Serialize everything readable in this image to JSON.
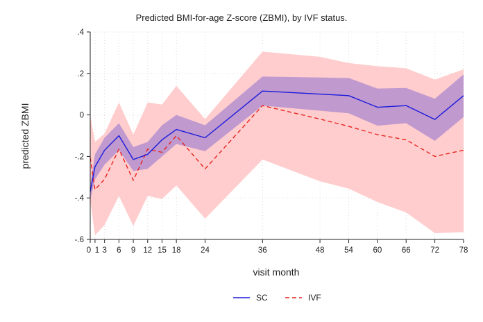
{
  "chart_data": {
    "type": "line",
    "title": "Predicted BMI-for-age Z-score (ZBMI), by IVF status.",
    "xlabel": "visit month",
    "ylabel": "predicted ZBMI",
    "x_ticks": [
      0,
      1,
      3,
      6,
      9,
      12,
      15,
      18,
      24,
      36,
      48,
      54,
      60,
      66,
      72,
      78
    ],
    "y_ticks": [
      -0.6,
      -0.4,
      -0.2,
      0,
      0.2,
      0.4
    ],
    "y_tick_labels": [
      "-.6",
      "-.4",
      "-.2",
      "0",
      ".2",
      ".4"
    ],
    "xlim": [
      0,
      78
    ],
    "ylim": [
      -0.6,
      0.4
    ],
    "grid": true,
    "legend_position": "bottom-center",
    "series": [
      {
        "name": "SC",
        "color": "#1a1adb",
        "band_color": "#b58fcf",
        "style": "solid",
        "x": [
          0,
          1,
          3,
          6,
          9,
          12,
          15,
          18,
          24,
          36,
          54,
          60,
          66,
          72,
          78
        ],
        "y": [
          -0.37,
          -0.25,
          -0.17,
          -0.1,
          -0.215,
          -0.19,
          -0.12,
          -0.07,
          -0.11,
          0.115,
          0.093,
          0.037,
          0.045,
          -0.022,
          0.093
        ],
        "lower": [
          -0.41,
          -0.31,
          -0.24,
          -0.17,
          -0.27,
          -0.26,
          -0.2,
          -0.14,
          -0.175,
          0.045,
          0.008,
          -0.052,
          -0.04,
          -0.125,
          -0.01
        ],
        "upper": [
          -0.34,
          -0.19,
          -0.11,
          -0.04,
          -0.155,
          -0.13,
          -0.05,
          0.0,
          -0.05,
          0.185,
          0.178,
          0.127,
          0.13,
          0.078,
          0.195
        ]
      },
      {
        "name": "IVF",
        "color": "#e8231f",
        "band_color": "#ffc8c8",
        "style": "dashed",
        "x": [
          0,
          1,
          3,
          6,
          9,
          12,
          15,
          18,
          24,
          36,
          48,
          54,
          60,
          66,
          72,
          78
        ],
        "y": [
          -0.205,
          -0.36,
          -0.31,
          -0.165,
          -0.315,
          -0.165,
          -0.18,
          -0.1,
          -0.26,
          0.045,
          -0.02,
          -0.055,
          -0.095,
          -0.12,
          -0.2,
          -0.17
        ],
        "lower": [
          -0.41,
          -0.58,
          -0.53,
          -0.39,
          -0.535,
          -0.39,
          -0.405,
          -0.34,
          -0.5,
          -0.215,
          -0.32,
          -0.355,
          -0.42,
          -0.47,
          -0.57,
          -0.565
        ],
        "upper": [
          0.0,
          -0.13,
          -0.09,
          0.06,
          -0.095,
          0.06,
          0.05,
          0.14,
          -0.02,
          0.305,
          0.28,
          0.25,
          0.235,
          0.225,
          0.17,
          0.22
        ]
      }
    ]
  }
}
